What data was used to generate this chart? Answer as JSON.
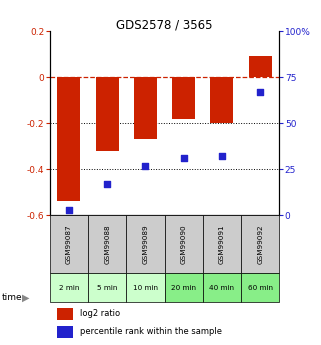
{
  "title": "GDS2578 / 3565",
  "samples": [
    "GSM99087",
    "GSM99088",
    "GSM99089",
    "GSM99090",
    "GSM99091",
    "GSM99092"
  ],
  "time_labels": [
    "2 min",
    "5 min",
    "10 min",
    "20 min",
    "40 min",
    "60 min"
  ],
  "log2_ratio": [
    -0.54,
    -0.32,
    -0.27,
    -0.18,
    -0.2,
    0.09
  ],
  "percentile_rank": [
    3,
    17,
    27,
    31,
    32,
    67
  ],
  "ylim_left": [
    -0.6,
    0.2
  ],
  "ylim_right": [
    0,
    100
  ],
  "yticks_left": [
    0.2,
    0.0,
    -0.2,
    -0.4,
    -0.6
  ],
  "yticks_right": [
    100,
    75,
    50,
    25,
    0
  ],
  "bar_color": "#cc2200",
  "dot_color": "#2222cc",
  "dashed_color": "#cc2200",
  "sample_bg": "#cccccc",
  "time_bg_colors": [
    "#ccffcc",
    "#ccffcc",
    "#ccffcc",
    "#88ee88",
    "#88ee88",
    "#88ee88"
  ],
  "legend_bar_label": "log2 ratio",
  "legend_dot_label": "percentile rank within the sample"
}
